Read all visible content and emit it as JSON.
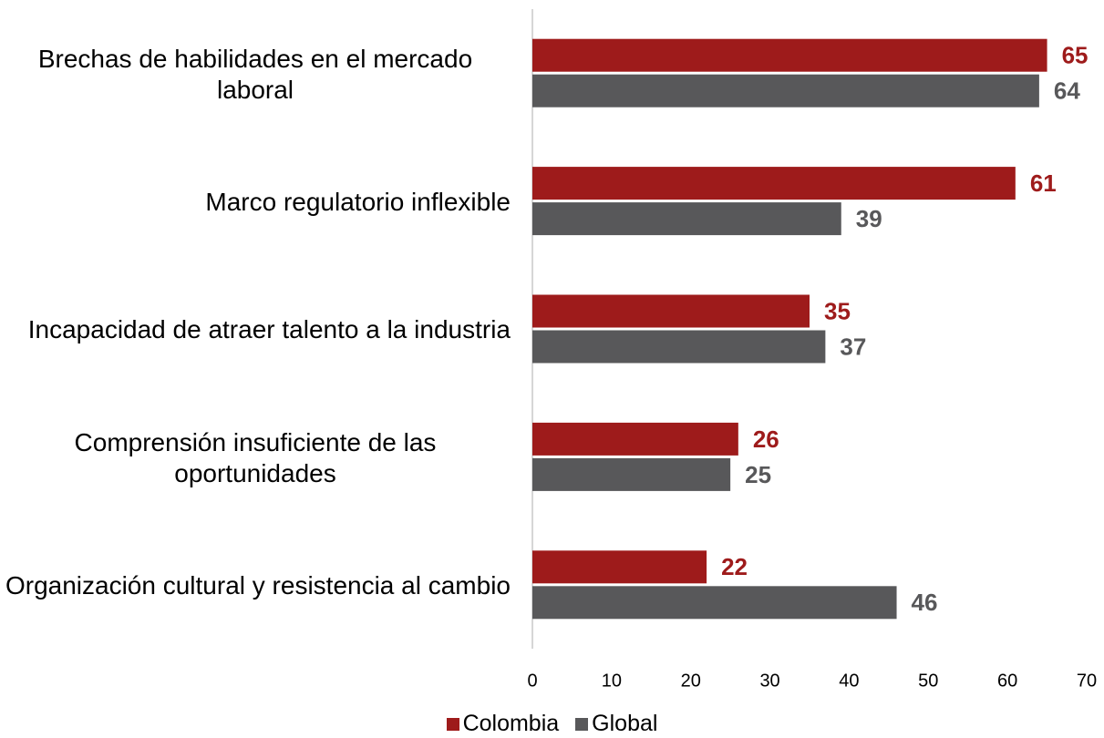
{
  "chart_data": {
    "type": "hbar",
    "categories": [
      "Brechas de habilidades en el mercado laboral",
      "Marco regulatorio inflexible",
      "Incapacidad de atraer talento a la industria",
      "Comprensión insuficiente de las oportunidades",
      "Organización cultural y resistencia al cambio"
    ],
    "series": [
      {
        "name": "Colombia",
        "color": "#9e1b1b",
        "values": [
          65,
          61,
          35,
          26,
          22
        ]
      },
      {
        "name": "Global",
        "color": "#58585a",
        "values": [
          64,
          39,
          37,
          25,
          46
        ]
      }
    ],
    "xlim": [
      0,
      70
    ],
    "xticks": [
      0,
      10,
      20,
      30,
      40,
      50,
      60,
      70
    ],
    "legend": "bottom"
  }
}
